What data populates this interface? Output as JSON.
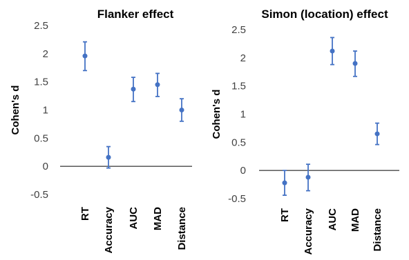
{
  "chart_data": [
    {
      "type": "scatter",
      "title": "Flanker effect",
      "xlabel": "",
      "ylabel": "Cohen's d",
      "ylim": [
        -0.5,
        2.5
      ],
      "yticks": [
        "2.5",
        "2",
        "1.5",
        "1",
        "0.5",
        "0",
        "-0.5"
      ],
      "categories": [
        "RT",
        "Accuracy",
        "AUC",
        "MAD",
        "Distance"
      ],
      "values": [
        1.96,
        0.16,
        1.37,
        1.45,
        1.0
      ],
      "error_low": [
        1.7,
        -0.03,
        1.15,
        1.24,
        0.8
      ],
      "error_high": [
        2.21,
        0.35,
        1.58,
        1.65,
        1.2
      ],
      "color": "#4472C4",
      "grid": false,
      "zero_line": true
    },
    {
      "type": "scatter",
      "title": "Simon (location)  effect",
      "xlabel": "",
      "ylabel": "Cohen's d",
      "ylim": [
        -0.5,
        2.5
      ],
      "yticks": [
        "2.5",
        "2",
        "1.5",
        "1",
        "0.5",
        "0",
        "-0.5"
      ],
      "categories": [
        "RT",
        "Accuracy",
        "AUC",
        "MAD",
        "Distance"
      ],
      "values": [
        -0.22,
        -0.12,
        2.12,
        1.9,
        0.65
      ],
      "error_low": [
        -0.44,
        -0.36,
        1.88,
        1.67,
        0.46
      ],
      "error_high": [
        0.0,
        0.11,
        2.36,
        2.12,
        0.84
      ],
      "color": "#4472C4",
      "grid": false,
      "zero_line": true
    }
  ]
}
